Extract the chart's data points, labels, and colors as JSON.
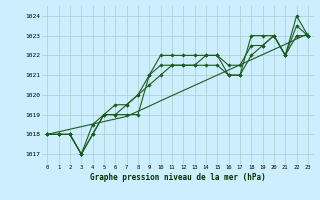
{
  "title": "Graphe pression niveau de la mer (hPa)",
  "xlim": [
    -0.5,
    23.5
  ],
  "ylim": [
    1016.5,
    1024.5
  ],
  "yticks": [
    1017,
    1018,
    1019,
    1020,
    1021,
    1022,
    1023,
    1024
  ],
  "xticks": [
    0,
    1,
    2,
    3,
    4,
    5,
    6,
    7,
    8,
    9,
    10,
    11,
    12,
    13,
    14,
    15,
    16,
    17,
    18,
    19,
    20,
    21,
    22,
    23
  ],
  "bg_color": "#cceeff",
  "grid_color": "#aacccc",
  "line_color": "#1a5c1a",
  "series_with_markers": [
    [
      1018.0,
      1018.0,
      1018.0,
      1017.0,
      1018.0,
      1019.0,
      1019.0,
      1019.0,
      1019.0,
      1021.0,
      1022.0,
      1022.0,
      1022.0,
      1022.0,
      1022.0,
      1022.0,
      1021.0,
      1021.0,
      1023.0,
      1023.0,
      1023.0,
      1022.0,
      1024.0,
      1023.0
    ],
    [
      1018.0,
      1018.0,
      1018.0,
      1017.0,
      1018.0,
      1019.0,
      1019.0,
      1019.5,
      1020.0,
      1021.0,
      1021.5,
      1021.5,
      1021.5,
      1021.5,
      1021.5,
      1021.5,
      1021.0,
      1021.0,
      1022.0,
      1022.5,
      1023.0,
      1022.0,
      1023.0,
      1023.0
    ],
    [
      1018.0,
      1018.0,
      1018.0,
      1017.0,
      1018.5,
      1019.0,
      1019.5,
      1019.5,
      1020.0,
      1020.5,
      1021.0,
      1021.5,
      1021.5,
      1021.5,
      1022.0,
      1022.0,
      1021.5,
      1021.5,
      1022.5,
      1022.5,
      1023.0,
      1022.0,
      1023.5,
      1023.0
    ]
  ],
  "series_trend": [
    1018.0,
    1018.13,
    1018.26,
    1018.39,
    1018.52,
    1018.65,
    1018.78,
    1018.91,
    1019.17,
    1019.43,
    1019.7,
    1019.96,
    1020.22,
    1020.48,
    1020.74,
    1021.0,
    1021.26,
    1021.52,
    1021.78,
    1022.04,
    1022.3,
    1022.56,
    1022.83,
    1023.1
  ]
}
